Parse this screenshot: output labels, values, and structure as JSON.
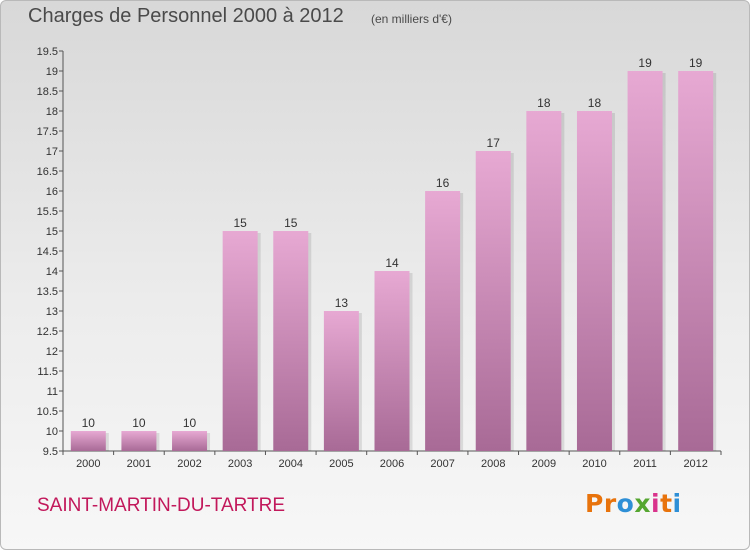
{
  "header": {
    "title": "Charges de Personnel 2000 à 2012",
    "subtitle": "(en milliers d'€)"
  },
  "footer": {
    "commune": "SAINT-MARTIN-DU-TARTRE",
    "logo_text": "Proxiti",
    "logo_colors": [
      "#e8730c",
      "#e8730c",
      "#2e8fd6",
      "#55a630",
      "#d9338c",
      "#e8730c",
      "#2e8fd6"
    ]
  },
  "colors": {
    "bar_top": "#e7a9d3",
    "bar_bottom": "#a86a96",
    "axis": "#555555",
    "commune": "#c2185b"
  },
  "chart_data": {
    "type": "bar",
    "title": "Charges de Personnel 2000 à 2012",
    "subtitle": "(en milliers d'€)",
    "categories": [
      "2000",
      "2001",
      "2002",
      "2003",
      "2004",
      "2005",
      "2006",
      "2007",
      "2008",
      "2009",
      "2010",
      "2011",
      "2012"
    ],
    "values": [
      10,
      10,
      10,
      15,
      15,
      13,
      14,
      16,
      17,
      18,
      18,
      19,
      19
    ],
    "ylim": [
      9.5,
      19.5
    ],
    "yticks": [
      "9.5",
      "10",
      "10.5",
      "11",
      "11.5",
      "12",
      "12.5",
      "13",
      "13.5",
      "14",
      "14.5",
      "15",
      "15.5",
      "16",
      "16.5",
      "17",
      "17.5",
      "18",
      "18.5",
      "19",
      "19.5"
    ],
    "xlabel": "",
    "ylabel": "",
    "grid": false,
    "data_labels": true
  }
}
